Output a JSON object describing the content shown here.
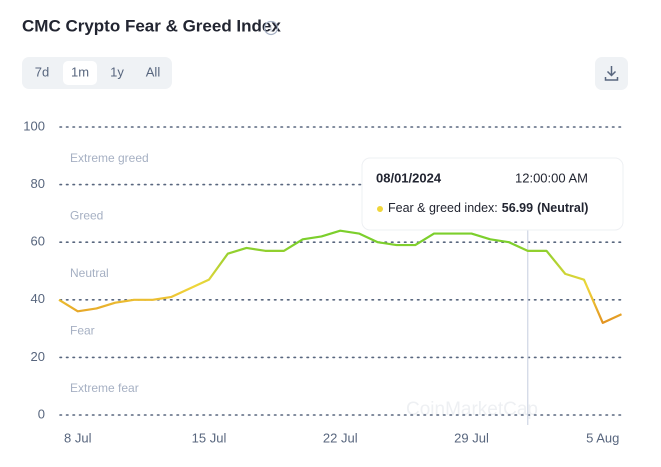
{
  "header": {
    "title": "CMC Crypto Fear & Greed Index"
  },
  "controls": {
    "ranges": [
      "7d",
      "1m",
      "1y",
      "All"
    ]
  },
  "watermark": "CoinMarketCap",
  "chart_data": {
    "type": "line",
    "categories": [
      null,
      "8 Jul",
      null,
      null,
      null,
      null,
      null,
      null,
      "15 Jul",
      null,
      null,
      null,
      null,
      null,
      null,
      "22 Jul",
      null,
      null,
      null,
      null,
      null,
      null,
      "29 Jul",
      null,
      null,
      null,
      null,
      null,
      null,
      "5 Aug",
      null
    ],
    "series": [
      {
        "name": "Fear & greed index:",
        "values": [
          40,
          36,
          37,
          39,
          40,
          40,
          41,
          44,
          47,
          56,
          58,
          57,
          57,
          61,
          62,
          64,
          63,
          60,
          59,
          59,
          63,
          63,
          63,
          61,
          60,
          56.99,
          57,
          49,
          47,
          32,
          35
        ]
      }
    ],
    "colors": [
      "#7ccf2c",
      "#f0d63a",
      "#e0861c"
    ],
    "ylim": [
      0,
      100
    ],
    "yticks": [
      0,
      20,
      40,
      60,
      80,
      100
    ],
    "grid": true,
    "zones": [
      "Extreme greed",
      "Greed",
      "Neutral",
      "Fear",
      "Extreme fear"
    ],
    "tooltip": {
      "date": "08/01/2024",
      "time": "12:00:00 AM",
      "status": "(Neutral)"
    }
  }
}
